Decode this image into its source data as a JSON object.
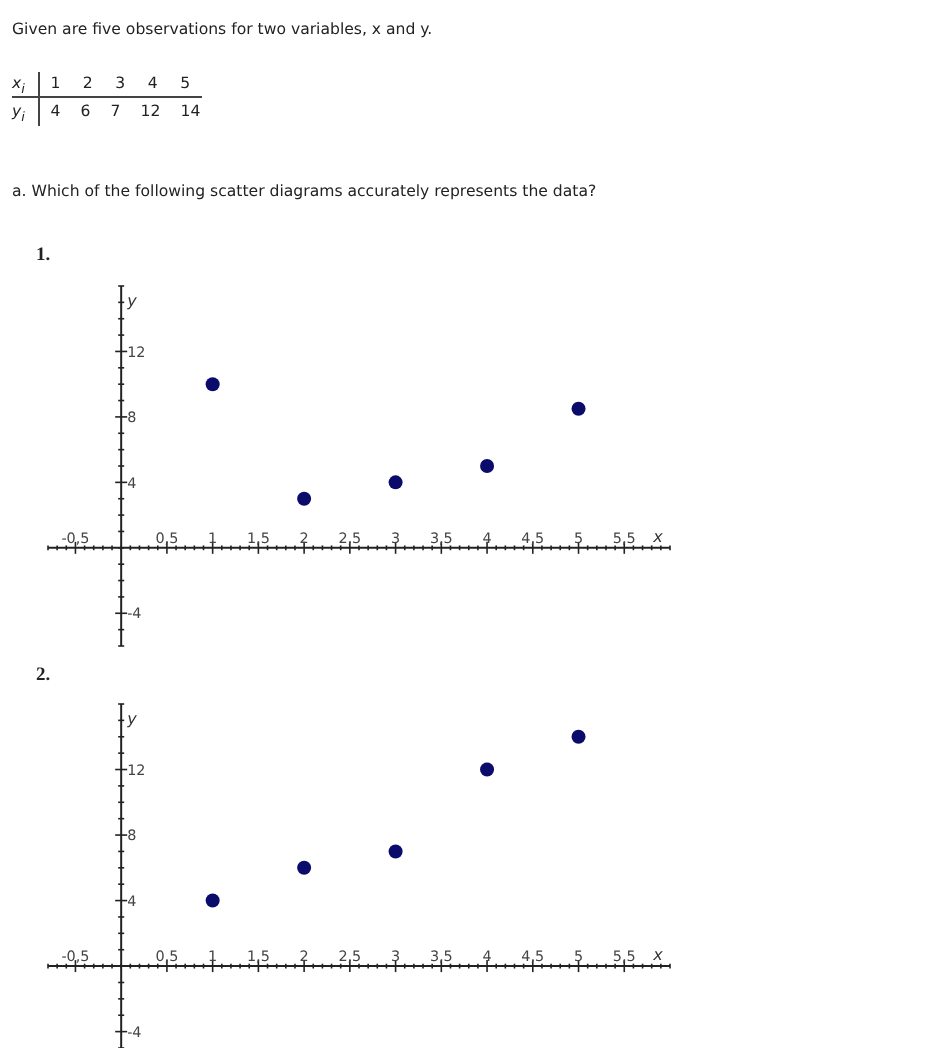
{
  "chart_data": [
    {
      "type": "other",
      "title": "Given are five observations for two variables, x and y.",
      "annotations": [
        "x$_{i}$",
        "1 2 3 4 5",
        "y$_{i}$",
        "4 6 7 12 14",
        "a. Which of the following scatter diagrams accurately represents the data?"
      ]
    },
    {
      "type": "scatter",
      "title": "1.",
      "xlabel": "x",
      "ylabel": "y",
      "x": [
        1,
        2,
        3,
        4,
        5
      ],
      "values": [
        10,
        3,
        4,
        5,
        8.5
      ],
      "color": "#0b0b6b",
      "marker": "circle",
      "xlim": [
        -0.8,
        6
      ],
      "ylim": [
        -6,
        16
      ],
      "xticks": [
        {
          "value": -0.8,
          "label": null
        },
        {
          "value": -0.7,
          "label": null
        },
        {
          "value": -0.6,
          "label": null
        },
        {
          "value": -0.5,
          "label": "-0,5"
        },
        {
          "value": -0.4,
          "label": null
        },
        {
          "value": -0.3,
          "label": null
        },
        {
          "value": -0.2,
          "label": null
        },
        {
          "value": -0.1,
          "label": null
        },
        {
          "value": 0,
          "label": null
        },
        {
          "value": 0.1,
          "label": null
        },
        {
          "value": 0.2,
          "label": null
        },
        {
          "value": 0.3,
          "label": null
        },
        {
          "value": 0.4,
          "label": null
        },
        {
          "value": 0.5,
          "label": "0,5"
        },
        {
          "value": 0.6,
          "label": null
        },
        {
          "value": 0.7,
          "label": null
        },
        {
          "value": 0.8,
          "label": null
        },
        {
          "value": 0.9,
          "label": null
        },
        1,
        {
          "value": 1.1,
          "label": null
        },
        {
          "value": 1.2,
          "label": null
        },
        {
          "value": 1.3,
          "label": null
        },
        {
          "value": 1.4,
          "label": null
        },
        {
          "value": 1.5,
          "label": "1,5"
        },
        {
          "value": 1.6,
          "label": null
        },
        {
          "value": 1.7,
          "label": null
        },
        {
          "value": 1.8,
          "label": null
        },
        {
          "value": 1.9,
          "label": null
        },
        2,
        {
          "value": 2.1,
          "label": null
        },
        {
          "value": 2.2,
          "label": null
        },
        {
          "value": 2.3,
          "label": null
        },
        {
          "value": 2.4,
          "label": null
        },
        {
          "value": 2.5,
          "label": "2,5"
        },
        {
          "value": 2.6,
          "label": null
        },
        {
          "value": 2.7,
          "label": null
        },
        {
          "value": 2.8,
          "label": null
        },
        {
          "value": 2.9,
          "label": null
        },
        3,
        {
          "value": 3.1,
          "label": null
        },
        {
          "value": 3.2,
          "label": null
        },
        {
          "value": 3.3,
          "label": null
        },
        {
          "value": 3.4,
          "label": null
        },
        {
          "value": 3.5,
          "label": "3,5"
        },
        {
          "value": 3.6,
          "label": null
        },
        {
          "value": 3.7,
          "label": null
        },
        {
          "value": 3.8,
          "label": null
        },
        {
          "value": 3.9,
          "label": null
        },
        4,
        {
          "value": 4.1,
          "label": null
        },
        {
          "value": 4.2,
          "label": null
        },
        {
          "value": 4.3,
          "label": null
        },
        {
          "value": 4.4,
          "label": null
        },
        {
          "value": 4.5,
          "label": "4,5"
        },
        {
          "value": 4.6,
          "label": null
        },
        {
          "value": 4.7,
          "label": null
        },
        {
          "value": 4.8,
          "label": null
        },
        {
          "value": 4.9,
          "label": null
        },
        5,
        {
          "value": 5.1,
          "label": null
        },
        {
          "value": 5.2,
          "label": null
        },
        {
          "value": 5.3,
          "label": null
        },
        {
          "value": 5.4,
          "label": null
        },
        {
          "value": 5.5,
          "label": "5,5"
        },
        {
          "value": 5.6,
          "label": null
        },
        {
          "value": 5.7,
          "label": null
        },
        {
          "value": 5.8,
          "label": null
        },
        {
          "value": 5.9,
          "label": null
        },
        {
          "value": 6,
          "label": null
        }
      ],
      "yticks": [
        {
          "value": -6,
          "label": null
        },
        {
          "value": -5,
          "label": null
        },
        -4,
        {
          "value": -3,
          "label": null
        },
        {
          "value": -2,
          "label": null
        },
        {
          "value": -1,
          "label": null
        },
        {
          "value": 0,
          "label": null
        },
        {
          "value": 1,
          "label": null
        },
        {
          "value": 2,
          "label": null
        },
        {
          "value": 3,
          "label": null
        },
        4,
        {
          "value": 5,
          "label": null
        },
        {
          "value": 6,
          "label": null
        },
        {
          "value": 7,
          "label": null
        },
        8,
        {
          "value": 9,
          "label": null
        },
        {
          "value": 10,
          "label": null
        },
        {
          "value": 11,
          "label": null
        },
        12,
        {
          "value": 13,
          "label": null
        },
        {
          "value": 14,
          "label": null
        },
        {
          "value": 15,
          "label": null
        },
        {
          "value": 16,
          "label": null
        }
      ]
    },
    {
      "type": "scatter",
      "title": "2.",
      "xlabel": "x",
      "ylabel": "y",
      "x": [
        1,
        2,
        3,
        4,
        5
      ],
      "values": [
        4,
        6,
        7,
        12,
        14
      ],
      "color": "#0b0b6b",
      "marker": "circle",
      "xlim": [
        -0.8,
        6
      ],
      "ylim": [
        -5,
        16
      ],
      "xticks": [
        {
          "value": -0.8,
          "label": null
        },
        {
          "value": -0.7,
          "label": null
        },
        {
          "value": -0.6,
          "label": null
        },
        {
          "value": -0.5,
          "label": "-0,5"
        },
        {
          "value": -0.4,
          "label": null
        },
        {
          "value": -0.3,
          "label": null
        },
        {
          "value": -0.2,
          "label": null
        },
        {
          "value": -0.1,
          "label": null
        },
        {
          "value": 0,
          "label": null
        },
        {
          "value": 0.1,
          "label": null
        },
        {
          "value": 0.2,
          "label": null
        },
        {
          "value": 0.3,
          "label": null
        },
        {
          "value": 0.4,
          "label": null
        },
        {
          "value": 0.5,
          "label": "0,5"
        },
        {
          "value": 0.6,
          "label": null
        },
        {
          "value": 0.7,
          "label": null
        },
        {
          "value": 0.8,
          "label": null
        },
        {
          "value": 0.9,
          "label": null
        },
        1,
        {
          "value": 1.1,
          "label": null
        },
        {
          "value": 1.2,
          "label": null
        },
        {
          "value": 1.3,
          "label": null
        },
        {
          "value": 1.4,
          "label": null
        },
        {
          "value": 1.5,
          "label": "1,5"
        },
        {
          "value": 1.6,
          "label": null
        },
        {
          "value": 1.7,
          "label": null
        },
        {
          "value": 1.8,
          "label": null
        },
        {
          "value": 1.9,
          "label": null
        },
        2,
        {
          "value": 2.1,
          "label": null
        },
        {
          "value": 2.2,
          "label": null
        },
        {
          "value": 2.3,
          "label": null
        },
        {
          "value": 2.4,
          "label": null
        },
        {
          "value": 2.5,
          "label": "2,5"
        },
        {
          "value": 2.6,
          "label": null
        },
        {
          "value": 2.7,
          "label": null
        },
        {
          "value": 2.8,
          "label": null
        },
        {
          "value": 2.9,
          "label": null
        },
        3,
        {
          "value": 3.1,
          "label": null
        },
        {
          "value": 3.2,
          "label": null
        },
        {
          "value": 3.3,
          "label": null
        },
        {
          "value": 3.4,
          "label": null
        },
        {
          "value": 3.5,
          "label": "3,5"
        },
        {
          "value": 3.6,
          "label": null
        },
        {
          "value": 3.7,
          "label": null
        },
        {
          "value": 3.8,
          "label": null
        },
        {
          "value": 3.9,
          "label": null
        },
        4,
        {
          "value": 4.1,
          "label": null
        },
        {
          "value": 4.2,
          "label": null
        },
        {
          "value": 4.3,
          "label": null
        },
        {
          "value": 4.4,
          "label": null
        },
        {
          "value": 4.5,
          "label": "4,5"
        },
        {
          "value": 4.6,
          "label": null
        },
        {
          "value": 4.7,
          "label": null
        },
        {
          "value": 4.8,
          "label": null
        },
        {
          "value": 4.9,
          "label": null
        },
        5,
        {
          "value": 5.1,
          "label": null
        },
        {
          "value": 5.2,
          "label": null
        },
        {
          "value": 5.3,
          "label": null
        },
        {
          "value": 5.4,
          "label": null
        },
        {
          "value": 5.5,
          "label": "5,5"
        },
        {
          "value": 5.6,
          "label": null
        },
        {
          "value": 5.7,
          "label": null
        },
        {
          "value": 5.8,
          "label": null
        },
        {
          "value": 5.9,
          "label": null
        },
        {
          "value": 6,
          "label": null
        }
      ],
      "yticks": [
        {
          "value": -5,
          "label": null
        },
        -4,
        {
          "value": -3,
          "label": null
        },
        {
          "value": -2,
          "label": null
        },
        {
          "value": -1,
          "label": null
        },
        {
          "value": 0,
          "label": null
        },
        {
          "value": 1,
          "label": null
        },
        {
          "value": 2,
          "label": null
        },
        {
          "value": 3,
          "label": null
        },
        4,
        {
          "value": 5,
          "label": null
        },
        {
          "value": 6,
          "label": null
        },
        {
          "value": 7,
          "label": null
        },
        8,
        {
          "value": 9,
          "label": null
        },
        {
          "value": 10,
          "label": null
        },
        {
          "value": 11,
          "label": null
        },
        12,
        {
          "value": 13,
          "label": null
        },
        {
          "value": 14,
          "label": null
        },
        {
          "value": 15,
          "label": null
        },
        {
          "value": 16,
          "label": null
        }
      ]
    }
  ]
}
